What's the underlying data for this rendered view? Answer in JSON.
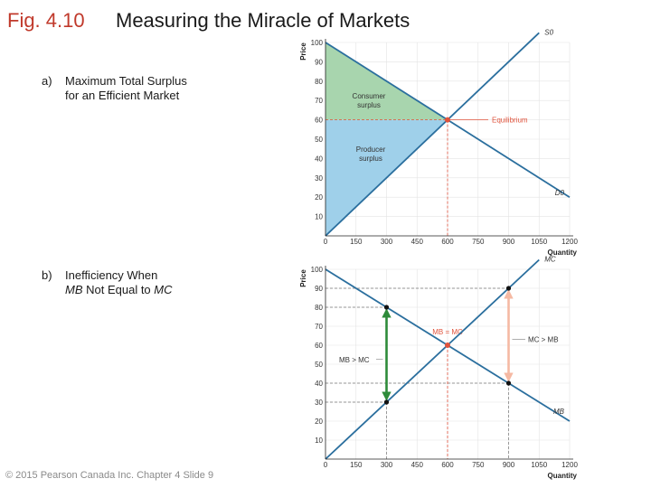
{
  "slide": {
    "figure_label": "Fig. 4.10",
    "title": "Measuring the Miracle of Markets",
    "footer": "© 2015 Pearson Canada Inc. Chapter 4  Slide 9"
  },
  "panels": {
    "a": {
      "tag": "a)",
      "line1": "Maximum Total Surplus",
      "line2": "for an Efficient Market"
    },
    "b": {
      "tag": "b)",
      "line1": "Inefficiency When",
      "line2_mb": "MB",
      "line2_mid": " Not Equal to ",
      "line2_mc": "MC"
    }
  },
  "colors": {
    "curve": "#2b6f9e",
    "consumer_surplus": "#a8d5ae",
    "producer_surplus": "#9fd0ea",
    "equilibrium": "#e0533c",
    "guide": "#777777",
    "green_arrow": "#2e8b3a",
    "pink_arrow": "#f5b9a3"
  },
  "chart_data": [
    {
      "type": "line",
      "xlabel": "Quantity",
      "ylabel": "Price",
      "xticks": [
        "0",
        "150",
        "300",
        "450",
        "600",
        "750",
        "900",
        "1050",
        "1200"
      ],
      "yticks": [
        "10",
        "20",
        "30",
        "40",
        "50",
        "60",
        "70",
        "80",
        "90",
        "100"
      ],
      "xlim": [
        0,
        1200
      ],
      "ylim": [
        0,
        100
      ],
      "series": [
        {
          "name": "S0",
          "x": [
            0,
            1050
          ],
          "y": [
            0,
            105
          ]
        },
        {
          "name": "D0",
          "x": [
            0,
            1200
          ],
          "y": [
            100,
            20
          ]
        }
      ],
      "annotations": {
        "consumer_surplus": [
          "Consumer",
          "surplus"
        ],
        "producer_surplus": [
          "Producer",
          "surplus"
        ],
        "equilibrium_label": "Equilibrium",
        "equilibrium": {
          "x": 600,
          "y": 60
        }
      }
    },
    {
      "type": "line",
      "xlabel": "Quantity",
      "ylabel": "Price",
      "xticks": [
        "0",
        "150",
        "300",
        "450",
        "600",
        "750",
        "900",
        "1050",
        "1200"
      ],
      "yticks": [
        "10",
        "20",
        "30",
        "40",
        "50",
        "60",
        "70",
        "80",
        "90",
        "100"
      ],
      "xlim": [
        0,
        1200
      ],
      "ylim": [
        0,
        100
      ],
      "series": [
        {
          "name": "MC",
          "x": [
            0,
            1050
          ],
          "y": [
            0,
            105
          ]
        },
        {
          "name": "MB",
          "x": [
            0,
            1200
          ],
          "y": [
            100,
            20
          ]
        }
      ],
      "annotations": {
        "mb_eq_mc": "MB = MC",
        "mb_gt_mc": "MB > MC",
        "mc_gt_mb": "MC > MB",
        "points": [
          {
            "x": 300,
            "y": 80
          },
          {
            "x": 300,
            "y": 30
          },
          {
            "x": 600,
            "y": 60
          },
          {
            "x": 900,
            "y": 90
          },
          {
            "x": 900,
            "y": 40
          }
        ]
      }
    }
  ]
}
